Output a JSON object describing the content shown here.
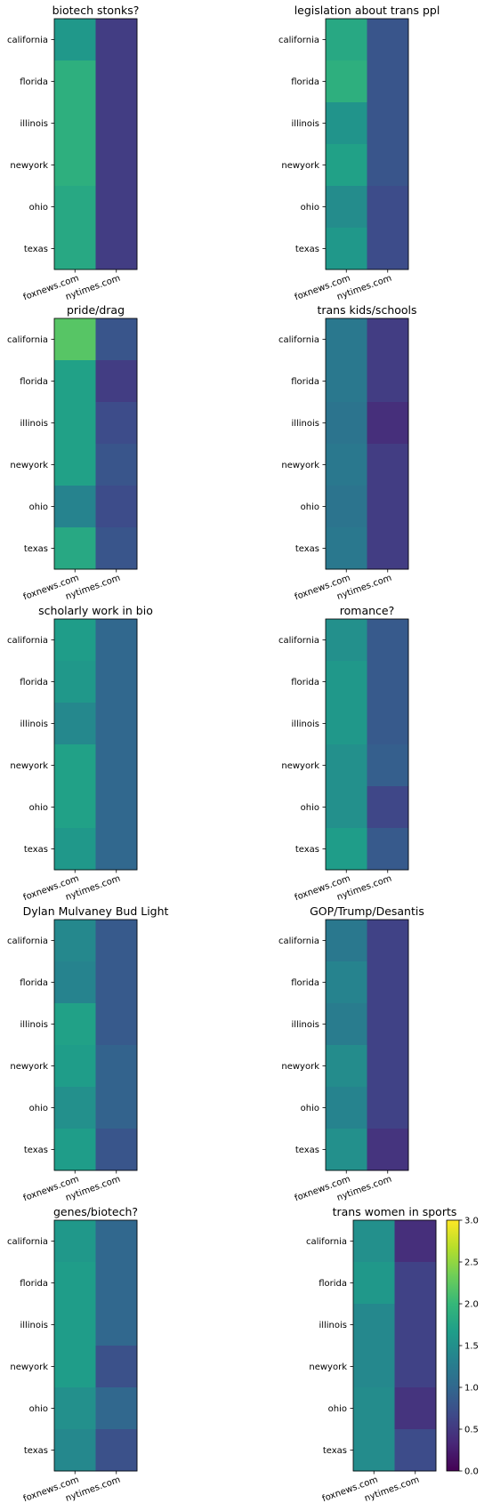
{
  "colormap": "viridis",
  "chart_data": [
    {
      "type": "heatmap",
      "title": "biotech stonks?",
      "rows": [
        "california",
        "florida",
        "illinois",
        "newyork",
        "ohio",
        "texas"
      ],
      "columns": [
        "foxnews.com",
        "nytimes.com"
      ],
      "values": [
        [
          1.6,
          0.55
        ],
        [
          1.9,
          0.55
        ],
        [
          1.9,
          0.55
        ],
        [
          1.9,
          0.55
        ],
        [
          1.8,
          0.55
        ],
        [
          1.8,
          0.55
        ]
      ]
    },
    {
      "type": "heatmap",
      "title": "legislation about trans ppl",
      "rows": [
        "california",
        "florida",
        "illinois",
        "newyork",
        "ohio",
        "texas"
      ],
      "columns": [
        "foxnews.com",
        "nytimes.com"
      ],
      "values": [
        [
          1.8,
          0.8
        ],
        [
          1.9,
          0.8
        ],
        [
          1.55,
          0.8
        ],
        [
          1.7,
          0.8
        ],
        [
          1.45,
          0.7
        ],
        [
          1.6,
          0.7
        ]
      ]
    },
    {
      "type": "heatmap",
      "title": "pride/drag",
      "rows": [
        "california",
        "florida",
        "illinois",
        "newyork",
        "ohio",
        "texas"
      ],
      "columns": [
        "foxnews.com",
        "nytimes.com"
      ],
      "values": [
        [
          2.2,
          0.8
        ],
        [
          1.7,
          0.55
        ],
        [
          1.7,
          0.7
        ],
        [
          1.7,
          0.8
        ],
        [
          1.35,
          0.7
        ],
        [
          1.8,
          0.8
        ]
      ]
    },
    {
      "type": "heatmap",
      "title": "trans kids/schools",
      "rows": [
        "california",
        "florida",
        "illinois",
        "newyork",
        "ohio",
        "texas"
      ],
      "columns": [
        "foxnews.com",
        "nytimes.com"
      ],
      "values": [
        [
          1.2,
          0.55
        ],
        [
          1.2,
          0.55
        ],
        [
          1.15,
          0.4
        ],
        [
          1.2,
          0.55
        ],
        [
          1.15,
          0.55
        ],
        [
          1.2,
          0.55
        ]
      ]
    },
    {
      "type": "heatmap",
      "title": "scholarly work in bio",
      "rows": [
        "california",
        "florida",
        "illinois",
        "newyork",
        "ohio",
        "texas"
      ],
      "columns": [
        "foxnews.com",
        "nytimes.com"
      ],
      "values": [
        [
          1.65,
          1.0
        ],
        [
          1.6,
          1.0
        ],
        [
          1.4,
          1.0
        ],
        [
          1.7,
          1.0
        ],
        [
          1.7,
          1.0
        ],
        [
          1.6,
          1.0
        ]
      ]
    },
    {
      "type": "heatmap",
      "title": "romance?",
      "rows": [
        "california",
        "florida",
        "illinois",
        "newyork",
        "ohio",
        "texas"
      ],
      "columns": [
        "foxnews.com",
        "nytimes.com"
      ],
      "values": [
        [
          1.5,
          0.85
        ],
        [
          1.6,
          0.85
        ],
        [
          1.6,
          0.85
        ],
        [
          1.5,
          0.9
        ],
        [
          1.5,
          0.65
        ],
        [
          1.65,
          0.85
        ]
      ]
    },
    {
      "type": "heatmap",
      "title": "Dylan Mulvaney Bud Light",
      "rows": [
        "california",
        "florida",
        "illinois",
        "newyork",
        "ohio",
        "texas"
      ],
      "columns": [
        "foxnews.com",
        "nytimes.com"
      ],
      "values": [
        [
          1.4,
          0.85
        ],
        [
          1.35,
          0.85
        ],
        [
          1.7,
          0.85
        ],
        [
          1.65,
          0.95
        ],
        [
          1.5,
          0.95
        ],
        [
          1.65,
          0.8
        ]
      ]
    },
    {
      "type": "heatmap",
      "title": "GOP/Trump/Desantis",
      "rows": [
        "california",
        "florida",
        "illinois",
        "newyork",
        "ohio",
        "texas"
      ],
      "columns": [
        "foxnews.com",
        "nytimes.com"
      ],
      "values": [
        [
          1.2,
          0.6
        ],
        [
          1.35,
          0.6
        ],
        [
          1.25,
          0.6
        ],
        [
          1.45,
          0.6
        ],
        [
          1.35,
          0.6
        ],
        [
          1.5,
          0.45
        ]
      ]
    },
    {
      "type": "heatmap",
      "title": "genes/biotech?",
      "rows": [
        "california",
        "florida",
        "illinois",
        "newyork",
        "ohio",
        "texas"
      ],
      "columns": [
        "foxnews.com",
        "nytimes.com"
      ],
      "values": [
        [
          1.6,
          1.0
        ],
        [
          1.65,
          1.0
        ],
        [
          1.65,
          1.0
        ],
        [
          1.65,
          0.75
        ],
        [
          1.5,
          1.0
        ],
        [
          1.4,
          0.75
        ]
      ]
    },
    {
      "type": "heatmap",
      "title": "trans women in sports",
      "rows": [
        "california",
        "florida",
        "illinois",
        "newyork",
        "ohio",
        "texas"
      ],
      "columns": [
        "foxnews.com",
        "nytimes.com"
      ],
      "values": [
        [
          1.5,
          0.4
        ],
        [
          1.6,
          0.6
        ],
        [
          1.4,
          0.6
        ],
        [
          1.4,
          0.6
        ],
        [
          1.45,
          0.45
        ],
        [
          1.45,
          0.7
        ]
      ]
    }
  ],
  "colorbar": {
    "min": 0.0,
    "max": 3.0,
    "ticks": [
      "0.0",
      "0.5",
      "1.0",
      "1.5",
      "2.0",
      "2.5",
      "3.0"
    ]
  }
}
